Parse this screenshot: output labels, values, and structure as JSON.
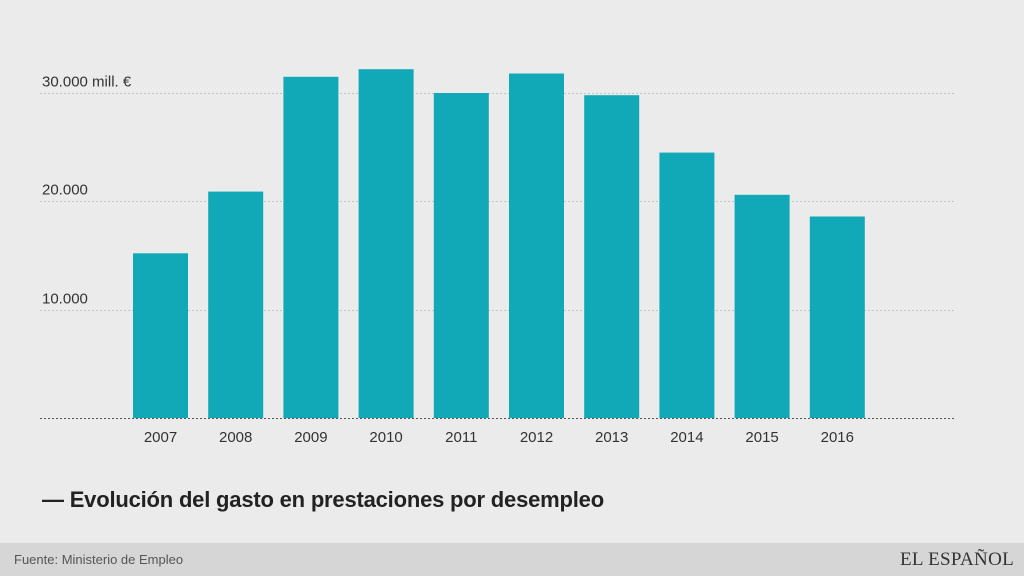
{
  "chart_data": {
    "type": "bar",
    "categories": [
      "2007",
      "2008",
      "2009",
      "2010",
      "2011",
      "2012",
      "2013",
      "2014",
      "2015",
      "2016"
    ],
    "values": [
      15200,
      20900,
      31500,
      32200,
      30000,
      31800,
      29800,
      24500,
      20600,
      18600
    ],
    "ylim": [
      0,
      30000
    ],
    "y_ticks": [
      {
        "value": 10000,
        "label": "10.000"
      },
      {
        "value": 20000,
        "label": "20.000"
      },
      {
        "value": 30000,
        "label": "30.000 mill. €"
      }
    ],
    "title": "— Evolución del gasto en prestaciones por desempleo",
    "grid": true,
    "bar_color": "#11a9b7"
  },
  "footer": {
    "source": "Fuente: Ministerio de Empleo",
    "logo": "EL ESPAÑOL"
  }
}
